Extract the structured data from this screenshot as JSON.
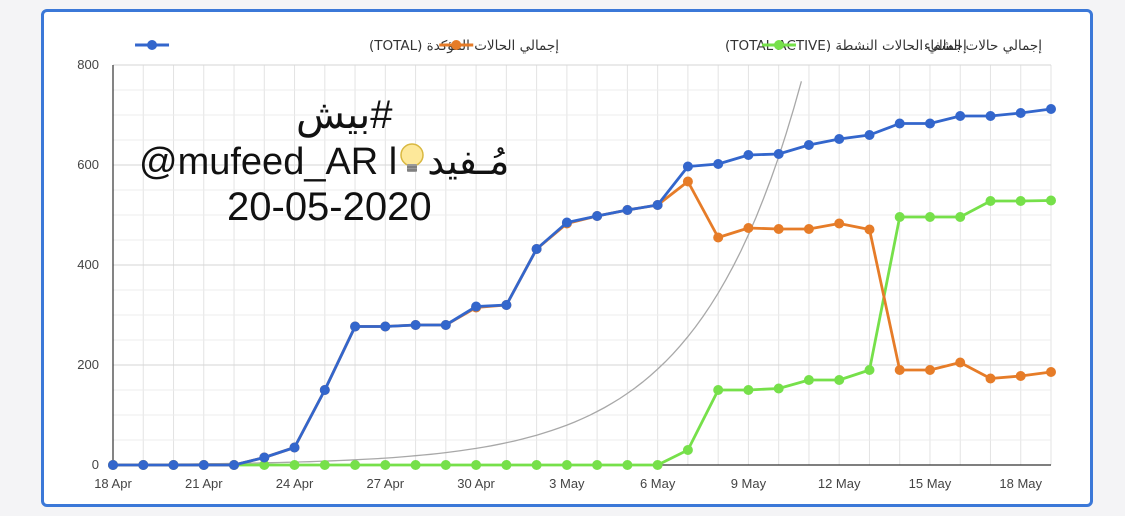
{
  "chart_data": {
    "type": "line",
    "x": [
      "18 Apr",
      "19 Apr",
      "20 Apr",
      "21 Apr",
      "22 Apr",
      "23 Apr",
      "24 Apr",
      "25 Apr",
      "26 Apr",
      "27 Apr",
      "28 Apr",
      "29 Apr",
      "30 Apr",
      "1 May",
      "2 May",
      "3 May",
      "4 May",
      "5 May",
      "6 May",
      "7 May",
      "8 May",
      "9 May",
      "10 May",
      "11 May",
      "12 May",
      "13 May",
      "14 May",
      "15 May",
      "16 May",
      "17 May",
      "18 May",
      "19 May"
    ],
    "x_ticks": [
      "18 Apr",
      "21 Apr",
      "24 Apr",
      "27 Apr",
      "30 Apr",
      "3 May",
      "6 May",
      "9 May",
      "12 May",
      "15 May",
      "18 May"
    ],
    "ylim": [
      0,
      800
    ],
    "y_ticks": [
      0,
      200,
      400,
      600,
      800
    ],
    "grid": true,
    "legend_position": "top",
    "series": [
      {
        "name": "إجمالي الحالات المؤكدة (TOTAL)",
        "color": "#3366cc",
        "values": [
          0,
          0,
          0,
          0,
          0,
          15,
          35,
          150,
          277,
          277,
          280,
          280,
          317,
          320,
          432,
          485,
          498,
          510,
          520,
          597,
          602,
          620,
          622,
          640,
          652,
          660,
          683,
          683,
          698,
          698,
          704,
          712
        ]
      },
      {
        "name": "إجمالي الحالات النشطة (TOTAL ACTIVE)",
        "color": "#e67c28",
        "values": [
          0,
          0,
          0,
          0,
          0,
          15,
          35,
          150,
          277,
          277,
          280,
          280,
          315,
          320,
          432,
          483,
          498,
          510,
          520,
          567,
          455,
          474,
          472,
          472,
          483,
          471,
          190,
          190,
          205,
          173,
          178,
          186
        ]
      },
      {
        "name": "إجمالي حالات الشفاء",
        "color": "#76e04a",
        "values": [
          0,
          0,
          0,
          0,
          0,
          0,
          0,
          0,
          0,
          0,
          0,
          0,
          0,
          0,
          0,
          0,
          0,
          0,
          0,
          30,
          150,
          150,
          153,
          170,
          170,
          190,
          496,
          496,
          496,
          528,
          528,
          529
        ]
      }
    ],
    "trend_curve": {
      "color": "#a8a8a8",
      "type": "exponential"
    }
  },
  "watermark": {
    "hashtag": "#بيش",
    "handle_prefix": "@mufeed_AR l",
    "bulb_icon": "lightbulb-icon",
    "handle_arabic": "مُـفيد",
    "date": "20-05-2020"
  }
}
